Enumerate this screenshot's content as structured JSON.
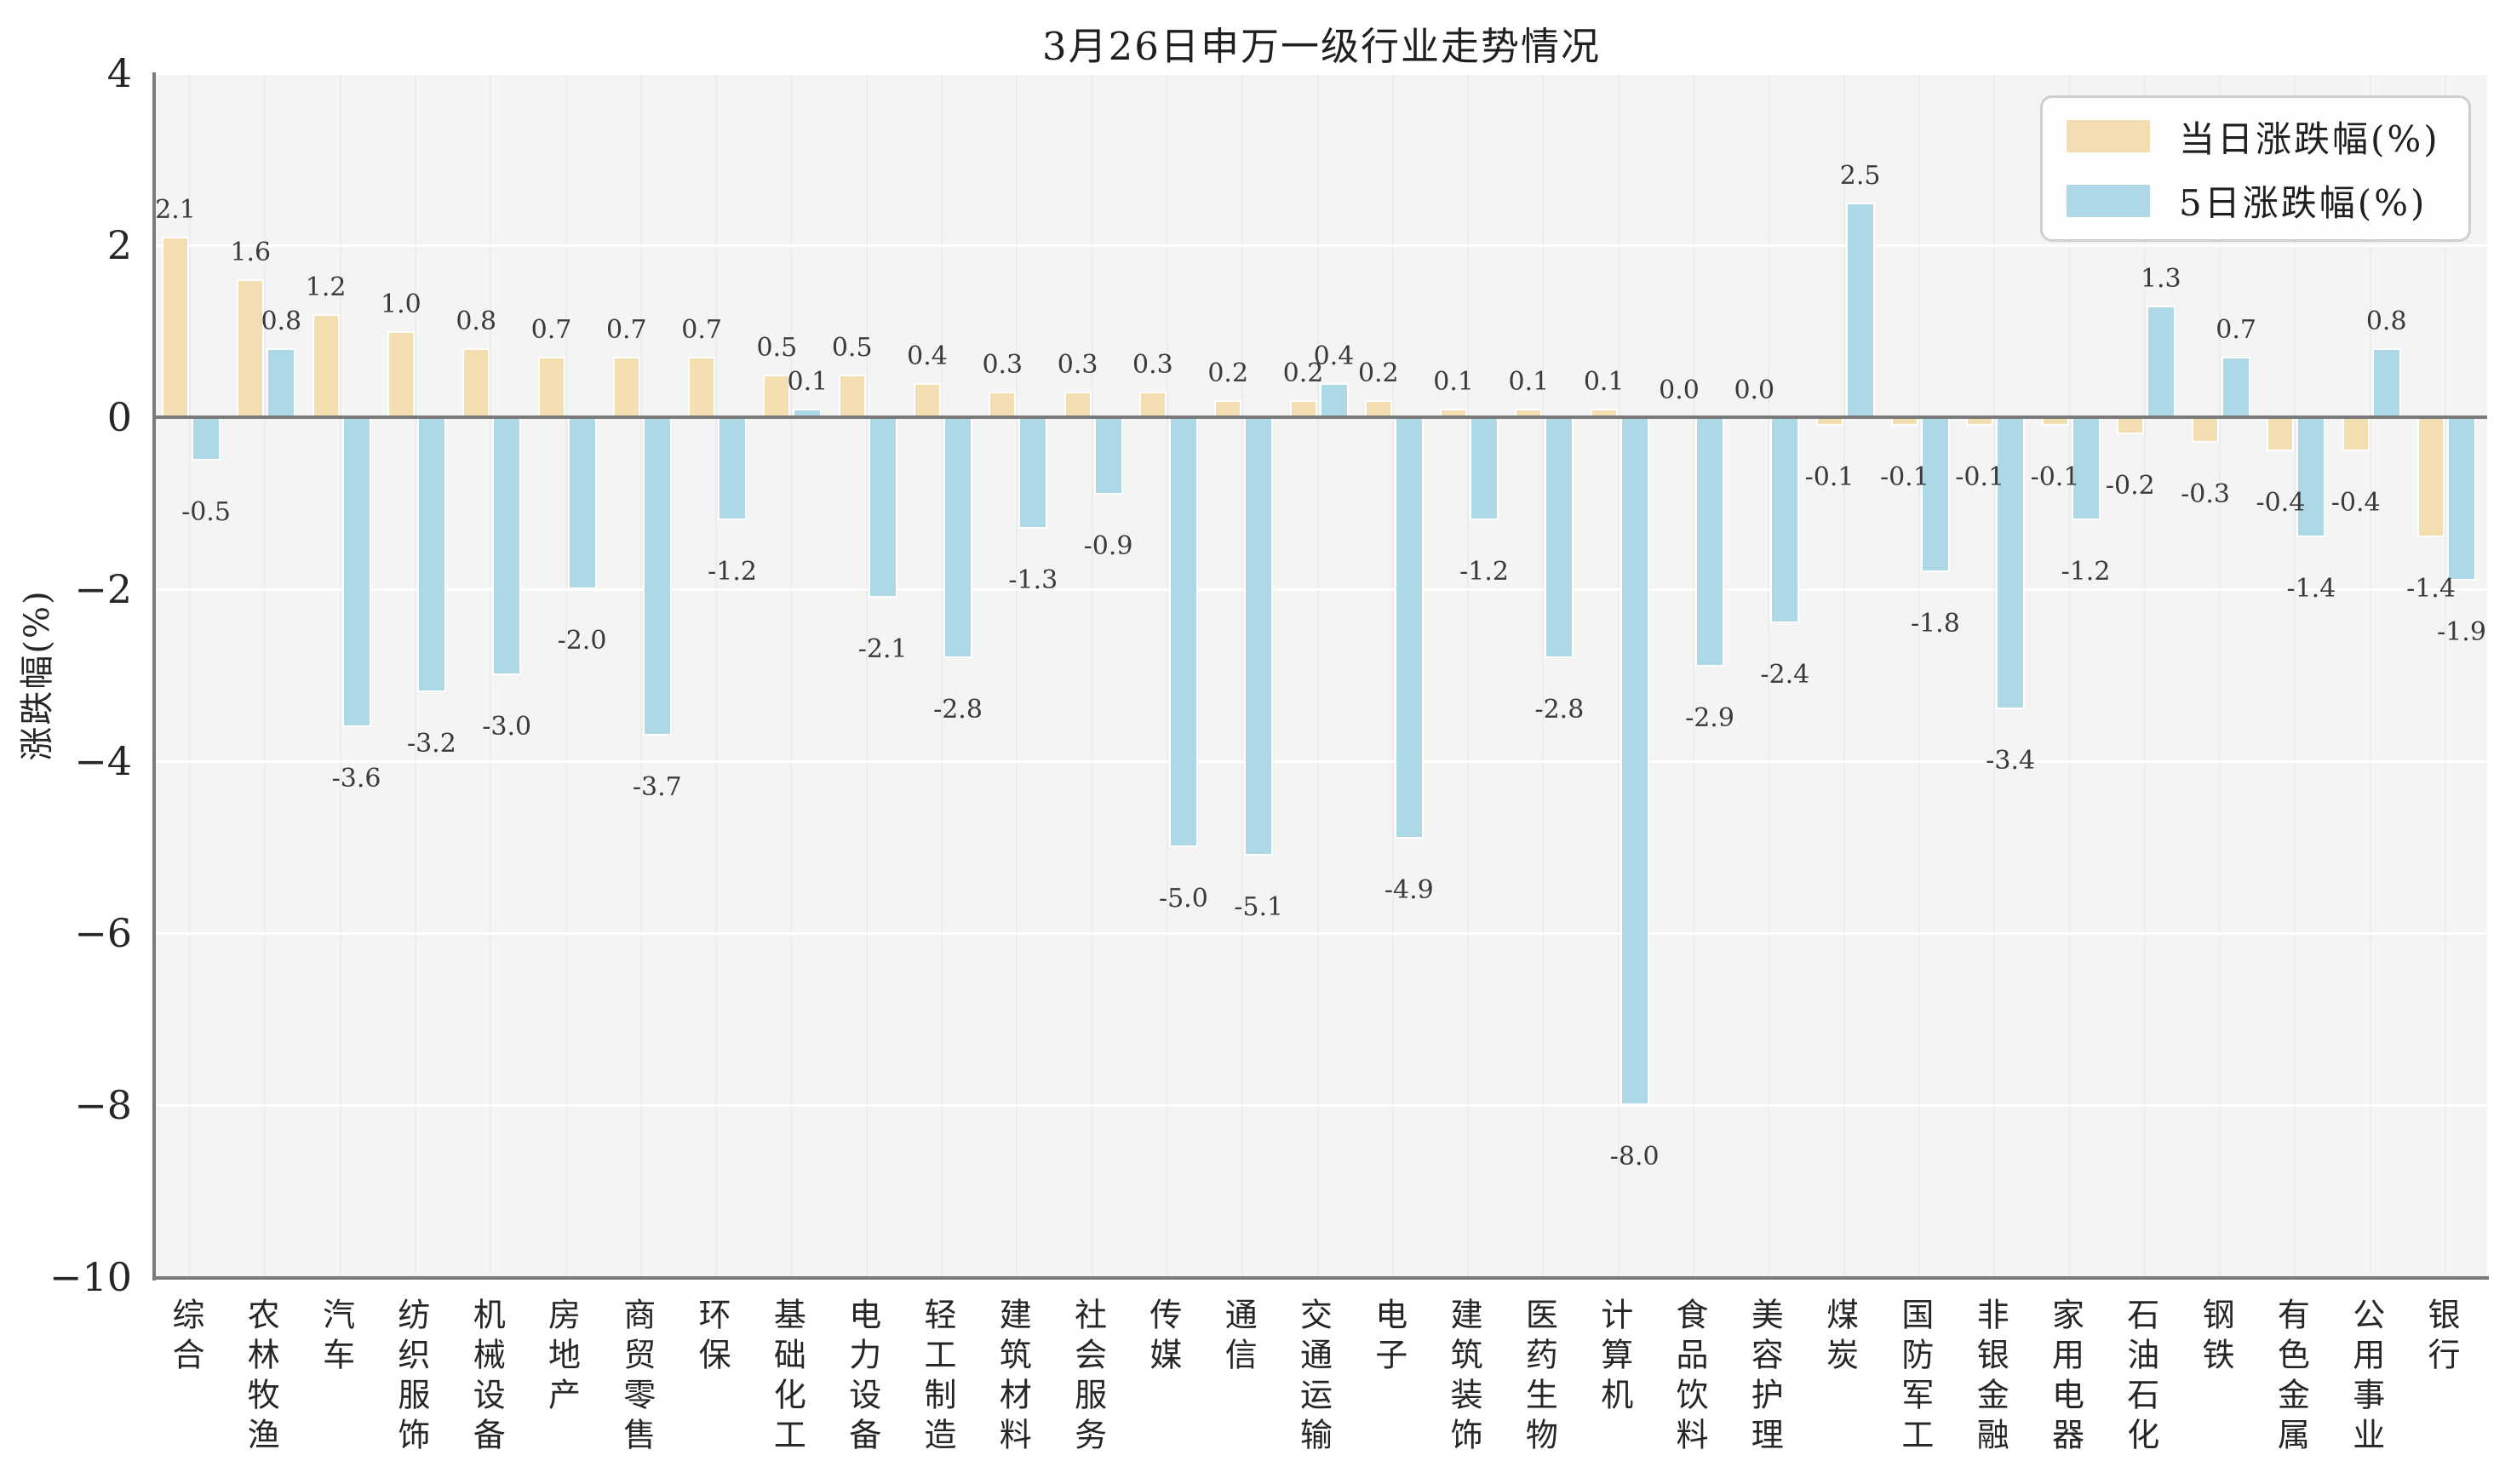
{
  "title": "3月26日申万一级行业走势情况",
  "chart_data": {
    "type": "bar",
    "title": "3月26日申万一级行业走势情况",
    "ylabel": "涨跌幅(%)",
    "xlabel": "",
    "ylim": [
      -10,
      4
    ],
    "yticks": [
      4,
      2,
      0,
      -2,
      -4,
      -6,
      -8,
      -10
    ],
    "grid": true,
    "legend_position": "upper right",
    "plot_background": "#f4f4f4",
    "categories": [
      "综合",
      "农林牧渔",
      "汽车",
      "纺织服饰",
      "机械设备",
      "房地产",
      "商贸零售",
      "环保",
      "基础化工",
      "电力设备",
      "轻工制造",
      "建筑材料",
      "社会服务",
      "传媒",
      "通信",
      "交通运输",
      "电子",
      "建筑装饰",
      "医药生物",
      "计算机",
      "食品饮料",
      "美容护理",
      "煤炭",
      "国防军工",
      "非银金融",
      "家用电器",
      "石油石化",
      "钢铁",
      "有色金属",
      "公用事业",
      "银行"
    ],
    "series": [
      {
        "name": "当日涨跌幅(%)",
        "color": "#f3deb2",
        "values": [
          2.1,
          1.6,
          1.2,
          1.0,
          0.8,
          0.7,
          0.7,
          0.7,
          0.5,
          0.5,
          0.4,
          0.3,
          0.3,
          0.3,
          0.2,
          0.2,
          0.2,
          0.1,
          0.1,
          0.1,
          0.0,
          0.0,
          -0.1,
          -0.1,
          -0.1,
          -0.1,
          -0.2,
          -0.3,
          -0.4,
          -0.4,
          -1.4
        ]
      },
      {
        "name": "5日涨跌幅(%)",
        "color": "#add9e6",
        "values": [
          -0.5,
          0.8,
          -3.6,
          -3.2,
          -3.0,
          -2.0,
          -3.7,
          -1.2,
          0.1,
          -2.1,
          -2.8,
          -1.3,
          -0.9,
          -5.0,
          -5.1,
          0.4,
          -4.9,
          -1.2,
          -2.8,
          -8.0,
          -2.9,
          -2.4,
          2.5,
          -1.8,
          -3.4,
          -1.2,
          1.3,
          0.7,
          -1.4,
          0.8,
          -1.9
        ]
      }
    ]
  }
}
